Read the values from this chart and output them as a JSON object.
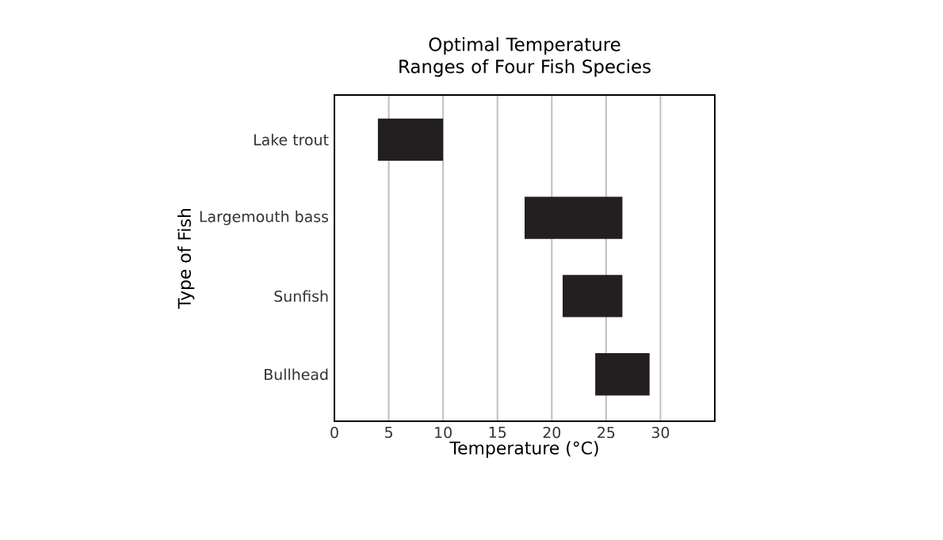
{
  "chart_data": {
    "type": "bar",
    "orientation": "horizontal",
    "title": "Optimal Temperature Ranges of Four Fish Species",
    "xlabel": "Temperature (°C)",
    "ylabel": "Type of Fish",
    "categories": [
      "Lake trout",
      "Largemouth bass",
      "Sunfish",
      "Bullhead"
    ],
    "base": [
      4,
      17.5,
      21,
      24
    ],
    "values": [
      6,
      9,
      5.5,
      5
    ],
    "color": "#231f20",
    "xlim": [
      0,
      35
    ],
    "xticks": [
      0,
      5,
      10,
      15,
      20,
      25,
      30
    ],
    "grid": "x"
  }
}
